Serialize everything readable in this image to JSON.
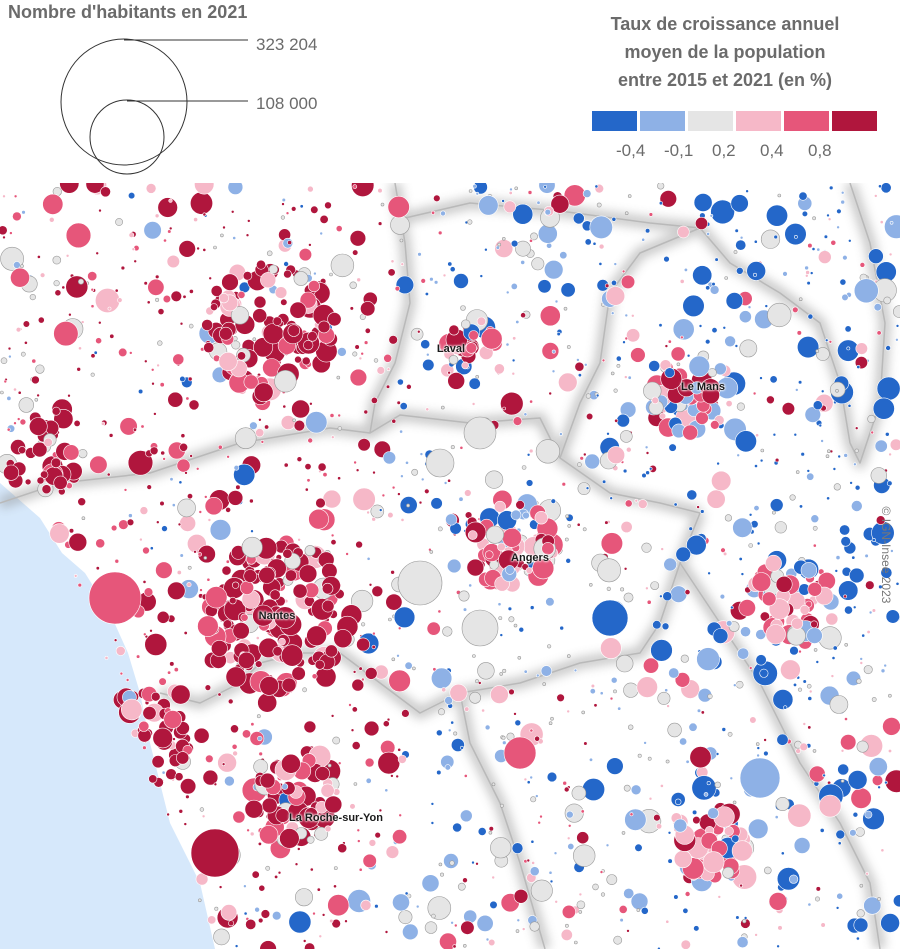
{
  "legend_size": {
    "title": "Nombre d'habitants en 2021",
    "values": [
      "323 204",
      "108 000"
    ]
  },
  "legend_color": {
    "title_lines": [
      "Taux de croissance annuel",
      "moyen de la population",
      "entre 2015 et 2021 (en %)"
    ],
    "classes": [
      {
        "label": "-0,4",
        "color": "#2467c9"
      },
      {
        "label": "-0,1",
        "color": "#8eb1e6"
      },
      {
        "label": "0,2",
        "color": "#e5e5e5"
      },
      {
        "label": "0,4",
        "color": "#f6b8c8"
      },
      {
        "label": "0,8",
        "color": "#e6567a"
      },
      {
        "label": "",
        "color": "#b0163d"
      }
    ]
  },
  "cities": [
    {
      "name": "Laval"
    },
    {
      "name": "Le Mans"
    },
    {
      "name": "Angers"
    },
    {
      "name": "Nantes"
    },
    {
      "name": "La Roche-sur-Yon"
    }
  ],
  "credit": "© IGN-Insee 2023",
  "colors": {
    "sea": "#d6e8fb",
    "land": "#ffffff",
    "border": "#cfcfcf"
  }
}
